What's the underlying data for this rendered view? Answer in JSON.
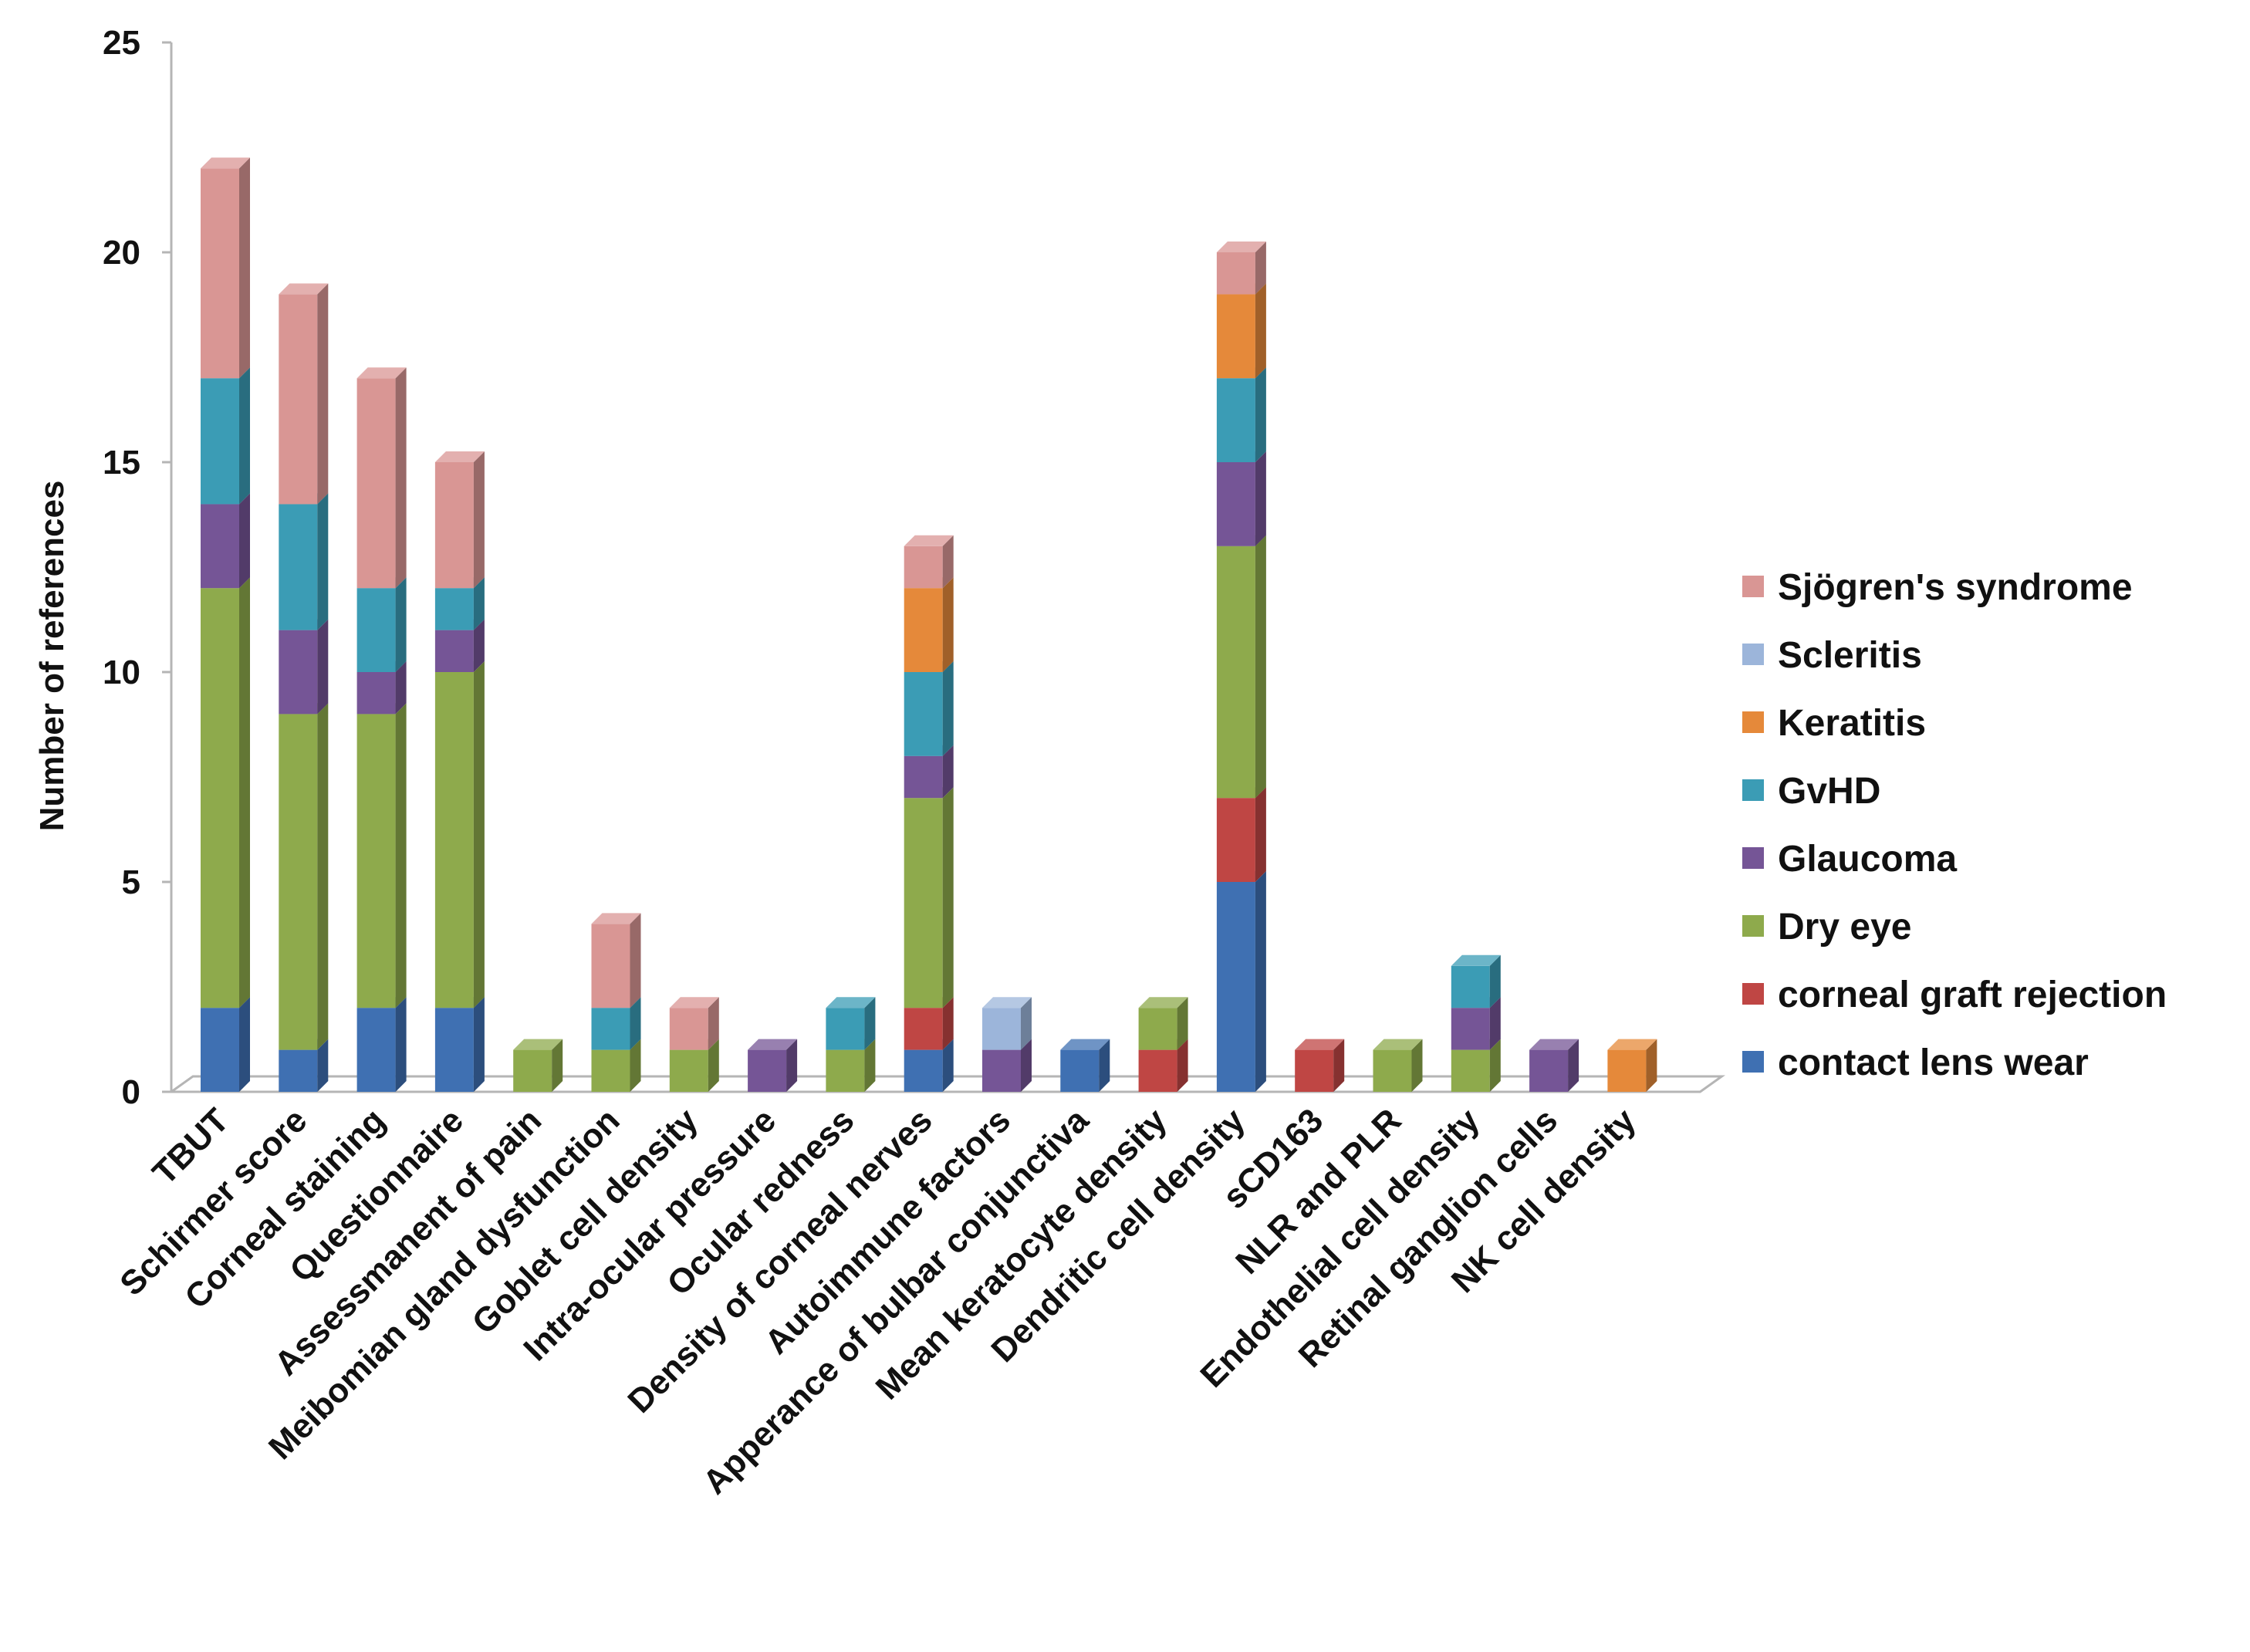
{
  "chart_data": {
    "type": "bar",
    "stacked": true,
    "title": "",
    "xlabel": "",
    "ylabel": "Number of references",
    "ylim": [
      0,
      25
    ],
    "yticks": [
      0,
      5,
      10,
      15,
      20,
      25
    ],
    "legend_position": "right",
    "categories": [
      "TBUT",
      "Schirmer score",
      "Corneal staining",
      "Questionnaire",
      "Assessmanent of pain",
      "Meibomian gland dysfunction",
      "Goblet cell density",
      "Intra-ocular pressure",
      "Ocular redness",
      "Density of corneal nerves",
      "Autoimmune factors",
      "Apperance of bulbar conjunctiva",
      "Mean keratocyte density",
      "Dendritic cell density",
      "sCD163",
      "NLR and PLR",
      "Endothelial cell density",
      "Retinal ganglion cells",
      "NK cell density"
    ],
    "series": [
      {
        "name": "contact lens wear",
        "color": "#3f70b2",
        "values": [
          2,
          1,
          2,
          2,
          0,
          0,
          0,
          0,
          0,
          1,
          0,
          1,
          0,
          5,
          0,
          0,
          0,
          0,
          0
        ]
      },
      {
        "name": "corneal graft rejection",
        "color": "#bf4644",
        "values": [
          0,
          0,
          0,
          0,
          0,
          0,
          0,
          0,
          0,
          1,
          0,
          0,
          1,
          2,
          1,
          0,
          0,
          0,
          0
        ]
      },
      {
        "name": "Dry eye",
        "color": "#8eaa4c",
        "values": [
          10,
          8,
          7,
          8,
          1,
          1,
          1,
          0,
          1,
          5,
          0,
          0,
          1,
          6,
          0,
          1,
          1,
          0,
          0
        ]
      },
      {
        "name": "Glaucoma",
        "color": "#755596",
        "values": [
          2,
          2,
          1,
          1,
          0,
          0,
          0,
          1,
          0,
          1,
          1,
          0,
          0,
          2,
          0,
          0,
          1,
          1,
          0
        ]
      },
      {
        "name": "GvHD",
        "color": "#3b9cb5",
        "values": [
          3,
          3,
          2,
          1,
          0,
          1,
          0,
          0,
          1,
          2,
          0,
          0,
          0,
          2,
          0,
          0,
          1,
          0,
          0
        ]
      },
      {
        "name": "Keratitis",
        "color": "#e5893a",
        "values": [
          0,
          0,
          0,
          0,
          0,
          0,
          0,
          0,
          0,
          2,
          0,
          0,
          0,
          2,
          0,
          0,
          0,
          0,
          1
        ]
      },
      {
        "name": "Scleritis",
        "color": "#9cb5da",
        "values": [
          0,
          0,
          0,
          0,
          0,
          0,
          0,
          0,
          0,
          0,
          1,
          0,
          0,
          0,
          0,
          0,
          0,
          0,
          0
        ]
      },
      {
        "name": "Sjögren's syndrome",
        "color": "#d99694",
        "values": [
          5,
          5,
          5,
          3,
          0,
          2,
          1,
          0,
          0,
          1,
          0,
          0,
          0,
          1,
          0,
          0,
          0,
          0,
          0
        ]
      }
    ]
  }
}
